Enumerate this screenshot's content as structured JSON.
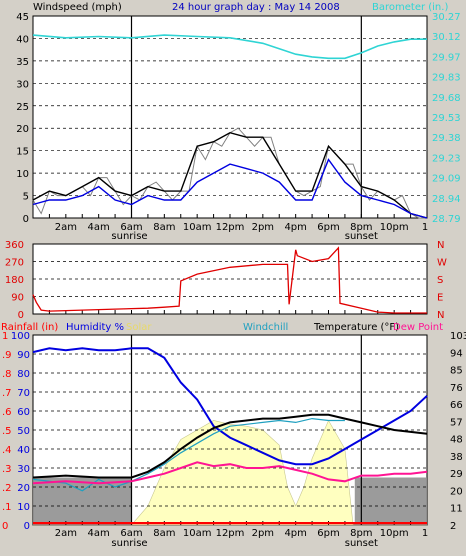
{
  "header": {
    "windspeed_label": "Windspeed (mph)",
    "title": "24 hour graph day : May 14 2008",
    "barometer_label": "Barometer (in.)"
  },
  "colors": {
    "background": "#d4d0c8",
    "plot_bg": "#ffffff",
    "grid": "#000000",
    "barometer": "#2fd4d4",
    "wind_gust": "#000000",
    "wind_avg": "#0000e0",
    "wind_gray": "#808080",
    "direction": "#e00000",
    "humidity": "#0000e0",
    "solar": "#ffffc0",
    "temperature": "#000000",
    "dew_point": "#ff1493",
    "windchill": "#20a0c0",
    "rainfall": "#ff0000"
  },
  "time_ticks": [
    "2am",
    "4am",
    "6am",
    "8am",
    "10am",
    "12pm",
    "2pm",
    "4pm",
    "6pm",
    "8pm",
    "10pm"
  ],
  "end_tick": "1",
  "sunrise_label": "sunrise",
  "sunset_label": "sunset",
  "chart_data": [
    {
      "type": "line",
      "id": "wind-barometer",
      "title": "24 hour graph day : May 14 2008",
      "ylabel": "Windspeed (mph)",
      "ylabel_right": "Barometer (in.)",
      "ylim": [
        0,
        45
      ],
      "y_ticks": [
        "0",
        "5",
        "10",
        "15",
        "20",
        "25",
        "30",
        "35",
        "40",
        "45"
      ],
      "y2_ticks": [
        "28.79",
        "28.94",
        "29.09",
        "29.23",
        "29.38",
        "29.53",
        "29.68",
        "29.83",
        "29.97",
        "30.12",
        "30.27"
      ],
      "x_hours": [
        0,
        24
      ],
      "series": [
        {
          "name": "Barometer (in.)",
          "hours": [
            0,
            2,
            4,
            6,
            8,
            10,
            12,
            14,
            15,
            16,
            17,
            18,
            19,
            20,
            21,
            22,
            23,
            24
          ],
          "values": [
            30.13,
            30.11,
            30.12,
            30.11,
            30.13,
            30.12,
            30.11,
            30.07,
            30.03,
            29.99,
            29.97,
            29.96,
            29.96,
            30.0,
            30.05,
            30.08,
            30.1,
            30.1
          ]
        },
        {
          "hours": [
            0,
            1,
            2,
            3,
            4,
            5,
            6,
            7,
            8,
            9,
            10,
            11,
            12,
            13,
            14,
            15,
            16,
            17,
            18,
            19,
            20,
            21,
            22,
            23,
            24
          ],
          "values": [
            4,
            6,
            5,
            7,
            9,
            6,
            5,
            7,
            6,
            6,
            16,
            17,
            19,
            18,
            18,
            12,
            6,
            6,
            16,
            12,
            7,
            6,
            4,
            1,
            0
          ]
        },
        {
          "hours": [
            0,
            1,
            2,
            3,
            4,
            5,
            6,
            7,
            8,
            9,
            10,
            11,
            12,
            13,
            14,
            15,
            16,
            17,
            18,
            19,
            20,
            21,
            22,
            23,
            24
          ],
          "values": [
            3,
            4,
            4,
            5,
            7,
            4,
            3,
            5,
            4,
            4,
            8,
            10,
            12,
            11,
            10,
            8,
            4,
            4,
            13,
            8,
            5,
            4,
            3,
            1,
            0
          ]
        }
      ]
    },
    {
      "type": "line",
      "id": "wind-direction",
      "y_ticks": [
        "0",
        "90",
        "180",
        "270",
        "360"
      ],
      "y_right_ticks": [
        "N",
        "W",
        "S",
        "E",
        "N"
      ],
      "ylim": [
        0,
        360
      ],
      "series": [
        {
          "hours": [
            0,
            0.2,
            0.5,
            1,
            3,
            5,
            7,
            8,
            8.9,
            9,
            10,
            12,
            14,
            15.5,
            15.6,
            16,
            16.1,
            17,
            18,
            18.6,
            18.7,
            20,
            21,
            22,
            24
          ],
          "values": [
            100,
            60,
            20,
            15,
            20,
            25,
            30,
            35,
            40,
            170,
            205,
            240,
            255,
            255,
            50,
            330,
            300,
            270,
            285,
            340,
            55,
            30,
            10,
            5,
            5
          ]
        }
      ]
    },
    {
      "type": "line",
      "id": "temp-humidity",
      "ylabel": "Rainfall (in)",
      "ylabel_humidity": "Humidity %",
      "ylabel_solar": "Solar",
      "ylabel_windchill": "Windchill",
      "ylabel_temperature": "Temperature (°F)",
      "ylabel_dew": "Dew Point",
      "y_ticks": [
        "0",
        "10",
        "20",
        "30",
        "40",
        "50",
        "60",
        "70",
        "80",
        "90",
        "100"
      ],
      "y_rain_ticks": [
        "0",
        ".1",
        ".2",
        ".3",
        ".4",
        ".5",
        ".6",
        ".7",
        ".8",
        ".9",
        "1"
      ],
      "y_right_ticks": [
        "2",
        "11",
        "20",
        "29",
        "38",
        "48",
        "57",
        "66",
        "76",
        "85",
        "94",
        "103"
      ],
      "ylim": [
        0,
        100
      ],
      "series": [
        {
          "name": "Humidity %",
          "hours": [
            0,
            1,
            2,
            3,
            4,
            5,
            6,
            7,
            8,
            9,
            10,
            11,
            12,
            13,
            14,
            15,
            16,
            17,
            18,
            19,
            20,
            21,
            22,
            23,
            24
          ],
          "values": [
            91,
            93,
            92,
            93,
            92,
            92,
            93,
            93,
            88,
            75,
            66,
            52,
            46,
            42,
            38,
            34,
            32,
            32,
            35,
            40,
            45,
            50,
            55,
            60,
            68
          ]
        },
        {
          "name": "Solar",
          "hours": [
            0,
            6,
            7,
            8,
            9,
            10,
            11,
            12,
            13,
            14,
            15,
            15.5,
            16,
            16.5,
            17,
            18,
            19,
            19.5,
            20,
            24
          ],
          "values": [
            0,
            0,
            10,
            30,
            45,
            50,
            55,
            53,
            52,
            50,
            42,
            20,
            10,
            20,
            35,
            55,
            40,
            0,
            0,
            0
          ]
        },
        {
          "name": "Temperature (°F)",
          "hours": [
            0,
            2,
            4,
            6,
            7,
            8,
            9,
            10,
            11,
            12,
            13,
            14,
            15,
            16,
            17,
            18,
            19,
            20,
            21,
            22,
            23,
            24
          ],
          "values": [
            25,
            26,
            25,
            25,
            28,
            33,
            40,
            46,
            51,
            54,
            55,
            56,
            56,
            57,
            58,
            58,
            56,
            54,
            52,
            50,
            49,
            48
          ]
        },
        {
          "name": "Dew Point",
          "hours": [
            0,
            2,
            4,
            6,
            7,
            8,
            9,
            10,
            11,
            12,
            13,
            14,
            15,
            16,
            17,
            18,
            19,
            20,
            21,
            22,
            23,
            24
          ],
          "values": [
            22,
            23,
            22,
            23,
            25,
            27,
            30,
            33,
            31,
            32,
            30,
            30,
            31,
            29,
            27,
            24,
            23,
            26,
            26,
            27,
            27,
            28
          ]
        },
        {
          "name": "Windchill",
          "hours": [
            0,
            2,
            3,
            4,
            5,
            6,
            7,
            8,
            9,
            10,
            11,
            12,
            13,
            14,
            15,
            16,
            17,
            18,
            19
          ],
          "values": [
            24,
            22,
            18,
            24,
            20,
            23,
            27,
            32,
            38,
            43,
            48,
            52,
            53,
            54,
            55,
            54,
            56,
            55,
            55
          ]
        },
        {
          "name": "Rainfall (in)",
          "hours": [
            0,
            24
          ],
          "values": [
            0.01,
            0.01
          ]
        }
      ]
    }
  ]
}
